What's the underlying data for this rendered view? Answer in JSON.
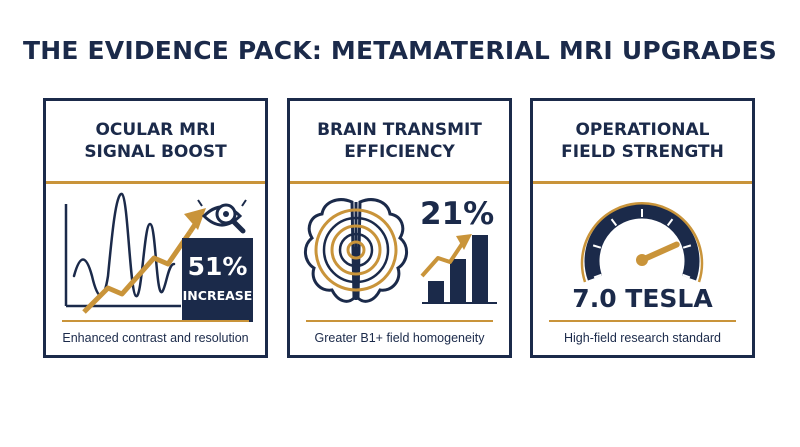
{
  "page": {
    "title": "THE EVIDENCE PACK: METAMATERIAL MRI UPGRADES"
  },
  "cards": [
    {
      "heading_line1": "OCULAR MRI",
      "heading_line2": "SIGNAL BOOST",
      "value": "51%",
      "value_label": "INCREASE",
      "caption": "Enhanced contrast and resolution",
      "icons": [
        "signal-wave-icon",
        "trend-arrow-icon",
        "eye-magnifier-icon"
      ]
    },
    {
      "heading_line1": "BRAIN TRANSMIT",
      "heading_line2": "EFFICIENCY",
      "value": "21%",
      "caption": "Greater B1+ field homogeneity",
      "icons": [
        "brain-rings-icon",
        "bar-growth-icon"
      ],
      "bar_levels": [
        0.28,
        0.55,
        0.85
      ]
    },
    {
      "heading_line1": "OPERATIONAL",
      "heading_line2": "FIELD STRENGTH",
      "value": "7.0 TESLA",
      "caption": "High-field research standard",
      "icons": [
        "gauge-icon"
      ],
      "gauge_level": 0.8
    }
  ],
  "colors": {
    "navy": "#1b2a4a",
    "gold": "#c9943a",
    "background": "#ffffff"
  }
}
